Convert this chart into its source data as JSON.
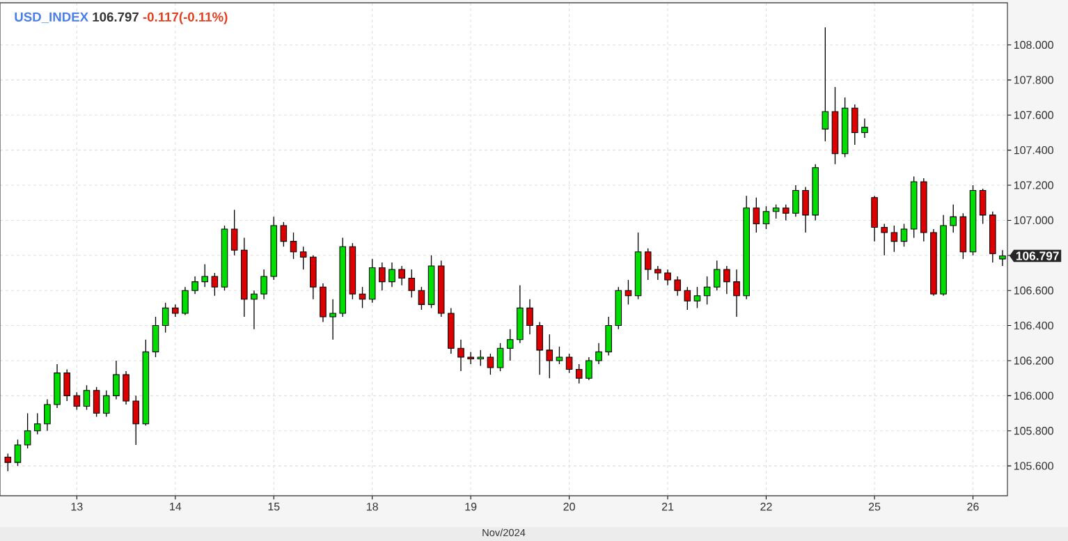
{
  "chart_data": {
    "type": "candlestick",
    "title": "USD_INDEX",
    "annotations": [
      "106.797",
      "-0.117(-0.11%)",
      "106.797"
    ],
    "xlabel": "Nov/2024",
    "categories": [
      null,
      null,
      null,
      null,
      null,
      null,
      null,
      "13",
      null,
      null,
      null,
      null,
      null,
      null,
      null,
      null,
      null,
      "14",
      null,
      null,
      null,
      null,
      null,
      null,
      null,
      null,
      null,
      "15",
      null,
      null,
      null,
      null,
      null,
      null,
      null,
      null,
      null,
      "18",
      null,
      null,
      null,
      null,
      null,
      null,
      null,
      null,
      null,
      "19",
      null,
      null,
      null,
      null,
      null,
      null,
      null,
      null,
      null,
      "20",
      null,
      null,
      null,
      null,
      null,
      null,
      null,
      null,
      null,
      "21",
      null,
      null,
      null,
      null,
      null,
      null,
      null,
      null,
      null,
      "22",
      null,
      null,
      null,
      null,
      null,
      null,
      null,
      null,
      null,
      null,
      "25",
      null,
      null,
      null,
      null,
      null,
      null,
      null,
      null,
      null,
      "26",
      null,
      null,
      null
    ],
    "ohlc": [
      [
        105.65,
        105.67,
        105.57,
        105.62
      ],
      [
        105.62,
        105.75,
        105.6,
        105.72
      ],
      [
        105.72,
        105.9,
        105.7,
        105.8
      ],
      [
        105.8,
        105.9,
        105.78,
        105.84
      ],
      [
        105.84,
        105.98,
        105.8,
        105.95
      ],
      [
        105.95,
        106.18,
        105.93,
        106.13
      ],
      [
        106.13,
        106.15,
        105.97,
        106.0
      ],
      [
        106.0,
        106.02,
        105.92,
        105.94
      ],
      [
        105.94,
        106.06,
        105.92,
        106.03
      ],
      [
        106.03,
        106.05,
        105.88,
        105.9
      ],
      [
        105.9,
        106.03,
        105.88,
        106.0
      ],
      [
        106.0,
        106.2,
        105.98,
        106.12
      ],
      [
        106.12,
        106.14,
        105.95,
        105.97
      ],
      [
        105.97,
        106.0,
        105.72,
        105.84
      ],
      [
        105.84,
        106.32,
        105.83,
        106.25
      ],
      [
        106.25,
        106.45,
        106.22,
        106.4
      ],
      [
        106.4,
        106.53,
        106.36,
        106.5
      ],
      [
        106.5,
        106.52,
        106.45,
        106.47
      ],
      [
        106.47,
        106.62,
        106.46,
        106.6
      ],
      [
        106.6,
        106.68,
        106.58,
        106.65
      ],
      [
        106.65,
        106.75,
        106.62,
        106.68
      ],
      [
        106.68,
        106.7,
        106.57,
        106.62
      ],
      [
        106.62,
        106.97,
        106.6,
        106.95
      ],
      [
        106.95,
        107.06,
        106.8,
        106.83
      ],
      [
        106.83,
        106.9,
        106.45,
        106.55
      ],
      [
        106.55,
        106.6,
        106.38,
        106.58
      ],
      [
        106.58,
        106.72,
        106.55,
        106.68
      ],
      [
        106.68,
        107.02,
        106.66,
        106.97
      ],
      [
        106.97,
        106.99,
        106.85,
        106.88
      ],
      [
        106.88,
        106.93,
        106.78,
        106.82
      ],
      [
        106.82,
        106.85,
        106.72,
        106.79
      ],
      [
        106.79,
        106.8,
        106.55,
        106.62
      ],
      [
        106.62,
        106.64,
        106.42,
        106.45
      ],
      [
        106.45,
        106.55,
        106.32,
        106.47
      ],
      [
        106.47,
        106.9,
        106.45,
        106.85
      ],
      [
        106.85,
        106.87,
        106.55,
        106.58
      ],
      [
        106.58,
        106.62,
        106.5,
        106.55
      ],
      [
        106.55,
        106.78,
        106.53,
        106.73
      ],
      [
        106.73,
        106.76,
        106.6,
        106.65
      ],
      [
        106.65,
        106.76,
        106.62,
        106.72
      ],
      [
        106.72,
        106.74,
        106.63,
        106.67
      ],
      [
        106.67,
        106.72,
        106.56,
        106.6
      ],
      [
        106.6,
        106.62,
        106.49,
        106.52
      ],
      [
        106.52,
        106.8,
        106.5,
        106.74
      ],
      [
        106.74,
        106.77,
        106.45,
        106.47
      ],
      [
        106.47,
        106.5,
        106.24,
        106.27
      ],
      [
        106.27,
        106.32,
        106.14,
        106.22
      ],
      [
        106.22,
        106.25,
        106.18,
        106.21
      ],
      [
        106.21,
        106.26,
        106.17,
        106.22
      ],
      [
        106.22,
        106.24,
        106.12,
        106.16
      ],
      [
        106.16,
        106.3,
        106.14,
        106.27
      ],
      [
        106.27,
        106.38,
        106.2,
        106.32
      ],
      [
        106.32,
        106.63,
        106.3,
        106.5
      ],
      [
        106.5,
        106.55,
        106.35,
        106.4
      ],
      [
        106.4,
        106.42,
        106.12,
        106.26
      ],
      [
        106.26,
        106.35,
        106.1,
        106.2
      ],
      [
        106.2,
        106.28,
        106.18,
        106.22
      ],
      [
        106.22,
        106.24,
        106.13,
        106.15
      ],
      [
        106.15,
        106.18,
        106.07,
        106.1
      ],
      [
        106.1,
        106.22,
        106.09,
        106.2
      ],
      [
        106.2,
        106.3,
        106.18,
        106.25
      ],
      [
        106.25,
        106.45,
        106.23,
        106.4
      ],
      [
        106.4,
        106.62,
        106.38,
        106.6
      ],
      [
        106.6,
        106.66,
        106.52,
        106.57
      ],
      [
        106.57,
        106.93,
        106.55,
        106.82
      ],
      [
        106.82,
        106.84,
        106.66,
        106.72
      ],
      [
        106.72,
        106.74,
        106.66,
        106.7
      ],
      [
        106.7,
        106.72,
        106.63,
        106.66
      ],
      [
        106.66,
        106.68,
        106.57,
        106.6
      ],
      [
        106.6,
        106.62,
        106.49,
        106.54
      ],
      [
        106.54,
        106.62,
        106.5,
        106.57
      ],
      [
        106.57,
        106.68,
        106.52,
        106.62
      ],
      [
        106.62,
        106.77,
        106.6,
        106.72
      ],
      [
        106.72,
        106.74,
        106.58,
        106.65
      ],
      [
        106.65,
        106.72,
        106.45,
        106.57
      ],
      [
        106.57,
        107.14,
        106.55,
        107.07
      ],
      [
        107.07,
        107.13,
        106.93,
        106.98
      ],
      [
        106.98,
        107.08,
        106.95,
        107.05
      ],
      [
        107.05,
        107.09,
        107.01,
        107.07
      ],
      [
        107.07,
        107.09,
        107.0,
        107.04
      ],
      [
        107.04,
        107.2,
        107.02,
        107.17
      ],
      [
        107.17,
        107.19,
        106.93,
        107.03
      ],
      [
        107.03,
        107.32,
        107.0,
        107.3
      ],
      [
        107.52,
        108.1,
        107.45,
        107.62
      ],
      [
        107.62,
        107.76,
        107.32,
        107.38
      ],
      [
        107.38,
        107.7,
        107.36,
        107.64
      ],
      [
        107.64,
        107.66,
        107.43,
        107.5
      ],
      [
        107.5,
        107.58,
        107.47,
        107.53
      ],
      [
        107.13,
        107.14,
        106.88,
        106.96
      ],
      [
        106.96,
        106.98,
        106.8,
        106.93
      ],
      [
        106.93,
        106.97,
        106.82,
        106.88
      ],
      [
        106.88,
        106.98,
        106.85,
        106.95
      ],
      [
        106.95,
        107.25,
        106.9,
        107.22
      ],
      [
        107.22,
        107.24,
        106.88,
        106.93
      ],
      [
        106.93,
        106.95,
        106.57,
        106.58
      ],
      [
        106.58,
        107.03,
        106.57,
        106.97
      ],
      [
        106.97,
        107.09,
        106.93,
        107.02
      ],
      [
        107.02,
        107.04,
        106.78,
        106.82
      ],
      [
        106.82,
        107.2,
        106.8,
        107.17
      ],
      [
        107.17,
        107.18,
        106.98,
        107.03
      ],
      [
        107.03,
        107.05,
        106.76,
        106.81
      ],
      [
        106.78,
        106.83,
        106.74,
        106.797
      ]
    ],
    "ylim": [
      105.43,
      108.24
    ],
    "yticks": [
      {
        "value": 105.6,
        "label": "105.600"
      },
      {
        "value": 105.8,
        "label": "105.800"
      },
      {
        "value": 106.0,
        "label": "106.000"
      },
      {
        "value": 106.2,
        "label": "106.200"
      },
      {
        "value": 106.4,
        "label": "106.400"
      },
      {
        "value": 106.6,
        "label": "106.600"
      },
      {
        "value": 106.8,
        "label": null
      },
      {
        "value": 107.0,
        "label": "107.000"
      },
      {
        "value": 107.2,
        "label": "107.200"
      },
      {
        "value": 107.4,
        "label": "107.400"
      },
      {
        "value": 107.6,
        "label": "107.600"
      },
      {
        "value": 107.8,
        "label": "107.800"
      },
      {
        "value": 108.0,
        "label": "108.000"
      }
    ],
    "grid": true
  }
}
